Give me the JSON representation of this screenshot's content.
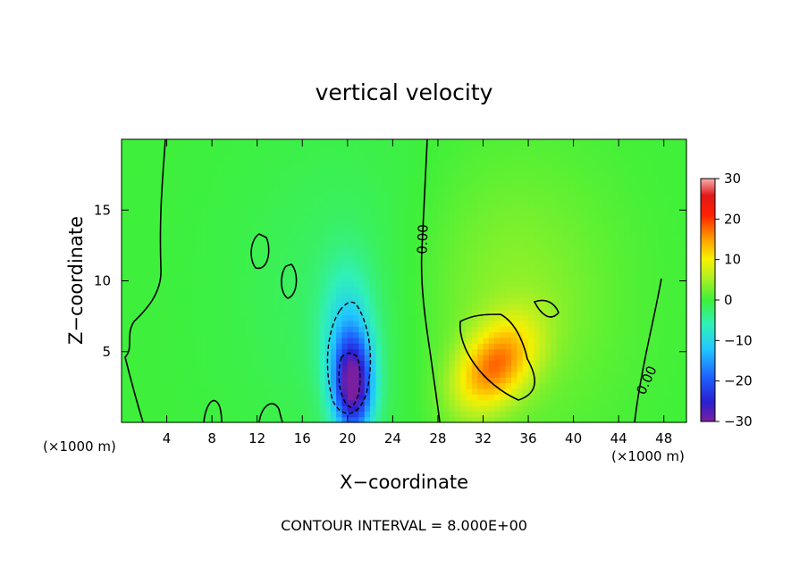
{
  "chart_data": {
    "type": "heatmap",
    "title": "vertical velocity",
    "xlabel": "X−coordinate",
    "ylabel": "Z−coordinate",
    "xlim": [
      0,
      50
    ],
    "ylim": [
      0,
      20
    ],
    "x_ticks": [
      4,
      8,
      12,
      16,
      20,
      24,
      28,
      32,
      36,
      40,
      44,
      48
    ],
    "y_ticks": [
      5,
      10,
      15
    ],
    "x_unit_label": "(×1000 m)",
    "y_unit_label": "(×1000 m)",
    "colorbar": {
      "range": [
        -30,
        30
      ],
      "ticks": [
        30,
        20,
        10,
        0,
        -10,
        -20,
        -30
      ],
      "tick_labels": [
        "30",
        "20",
        "10",
        "0",
        "−10",
        "−20",
        "−30"
      ]
    },
    "contour_interval_text": "CONTOUR INTERVAL = 8.000E+00",
    "contour_labels": [
      "0.00",
      "0.00"
    ],
    "background_value": 0,
    "features": [
      {
        "kind": "downdraft",
        "x": 20.5,
        "z": 2.5,
        "sx": 1.2,
        "sz": 2.4,
        "amp": -26,
        "rot": 0
      },
      {
        "kind": "downdraft",
        "x": 20.0,
        "z": 6.0,
        "sx": 1.6,
        "sz": 3.5,
        "amp": -9,
        "rot": 0
      },
      {
        "kind": "weak-downdraft",
        "x": 23.0,
        "z": 9.0,
        "sx": 8,
        "sz": 8,
        "amp": -3,
        "rot": 0
      },
      {
        "kind": "updraft",
        "x": 33.0,
        "z": 4.0,
        "sx": 2.8,
        "sz": 1.8,
        "amp": 15,
        "rot": -0.65
      },
      {
        "kind": "weak-updraft",
        "x": 33.0,
        "z": 9.0,
        "sx": 7,
        "sz": 7,
        "amp": 5,
        "rot": 0
      }
    ]
  }
}
